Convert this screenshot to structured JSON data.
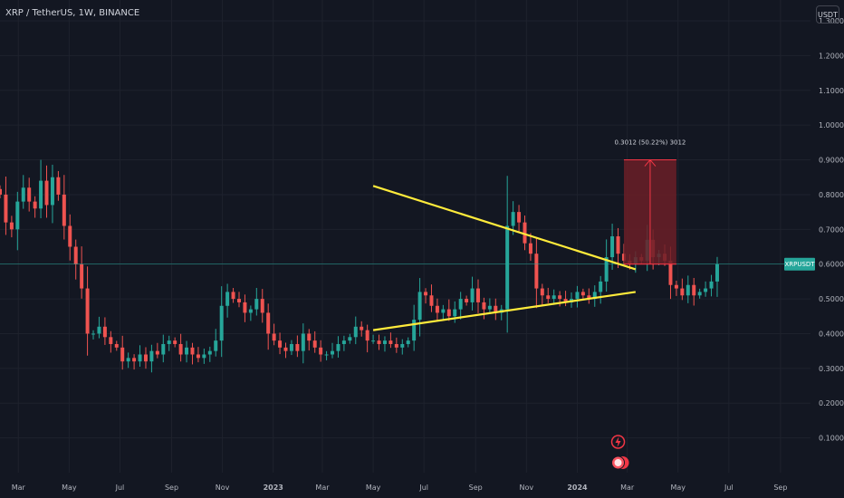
{
  "header": {
    "symbol_line": "XRP / TetherUS, 1W, BINANCE",
    "unit": "USDT"
  },
  "colors": {
    "background": "#131722",
    "up": "#26a69a",
    "down": "#ef5350",
    "trendline": "#ffeb3b",
    "price_line": "#26a69a",
    "measure_fill": "#6b1f27",
    "measure_line": "#f23645"
  },
  "chart_data": {
    "type": "candlestick",
    "y_axis": {
      "ylim": [
        0.0,
        1.36
      ],
      "ticks": [
        0.1,
        0.2,
        0.3,
        0.4,
        0.5,
        0.6,
        0.7,
        0.8,
        0.9,
        1.0,
        1.1,
        1.2,
        1.3
      ],
      "tick_labels": [
        "0.1000",
        "0.2000",
        "0.3000",
        "0.4000",
        "0.5000",
        "0.6000",
        "0.7000",
        "0.8000",
        "0.9000",
        "1.0000",
        "1.1000",
        "1.2000",
        "1.3000"
      ]
    },
    "x_axis": {
      "start": "2022-02-07",
      "interval": "1W",
      "xlim": [
        "2022-02-07",
        "2024-10-07"
      ],
      "ticks": [
        "2022-03-01",
        "2022-05-01",
        "2022-07-01",
        "2022-09-01",
        "2022-11-01",
        "2023-01-01",
        "2023-03-01",
        "2023-05-01",
        "2023-07-01",
        "2023-09-01",
        "2023-11-01",
        "2024-01-01",
        "2024-03-01",
        "2024-05-01",
        "2024-07-01",
        "2024-09-01"
      ],
      "tick_labels": [
        "Mar",
        "May",
        "Jul",
        "Sep",
        "Nov",
        "2023",
        "Mar",
        "May",
        "Jul",
        "Sep",
        "Nov",
        "2024",
        "Mar",
        "May",
        "Jul",
        "Sep"
      ],
      "bold_ticks": [
        "2023",
        "2024"
      ]
    },
    "candles_close": [
      0.8,
      0.72,
      0.7,
      0.78,
      0.82,
      0.78,
      0.76,
      0.84,
      0.77,
      0.85,
      0.8,
      0.71,
      0.65,
      0.6,
      0.53,
      0.4,
      0.4,
      0.42,
      0.39,
      0.37,
      0.36,
      0.32,
      0.33,
      0.32,
      0.34,
      0.32,
      0.35,
      0.34,
      0.37,
      0.38,
      0.37,
      0.34,
      0.36,
      0.34,
      0.33,
      0.34,
      0.35,
      0.38,
      0.48,
      0.52,
      0.5,
      0.49,
      0.46,
      0.47,
      0.5,
      0.46,
      0.4,
      0.38,
      0.36,
      0.35,
      0.37,
      0.35,
      0.4,
      0.38,
      0.36,
      0.34,
      0.34,
      0.35,
      0.37,
      0.38,
      0.39,
      0.42,
      0.41,
      0.38,
      0.38,
      0.37,
      0.38,
      0.37,
      0.36,
      0.37,
      0.38,
      0.44,
      0.52,
      0.51,
      0.48,
      0.46,
      0.47,
      0.45,
      0.47,
      0.5,
      0.49,
      0.53,
      0.49,
      0.47,
      0.48,
      0.46,
      0.47,
      0.71,
      0.75,
      0.72,
      0.66,
      0.63,
      0.53,
      0.51,
      0.5,
      0.51,
      0.5,
      0.49,
      0.5,
      0.52,
      0.51,
      0.5,
      0.52,
      0.55,
      0.62,
      0.68,
      0.63,
      0.61,
      0.6,
      0.62,
      0.61,
      0.67,
      0.62,
      0.63,
      0.61,
      0.54,
      0.53,
      0.51,
      0.54,
      0.51,
      0.52,
      0.53,
      0.55,
      0.6
    ],
    "current_price_label": "XRPUSDT",
    "current_price": 0.6,
    "trendlines": [
      {
        "name": "upper",
        "from": [
          "2023-05-01",
          0.825
        ],
        "to": [
          "2024-03-11",
          0.585
        ]
      },
      {
        "name": "lower",
        "from": [
          "2023-05-01",
          0.41
        ],
        "to": [
          "2024-03-11",
          0.52
        ]
      }
    ],
    "measure": {
      "from_date": "2024-02-26",
      "to_date": "2024-04-29",
      "bottom": 0.6,
      "top": 0.9,
      "label": "0.3012 (50.22%) 3012"
    },
    "annotations": [
      "event-flash-icon",
      "earnings-badge-icon"
    ]
  }
}
